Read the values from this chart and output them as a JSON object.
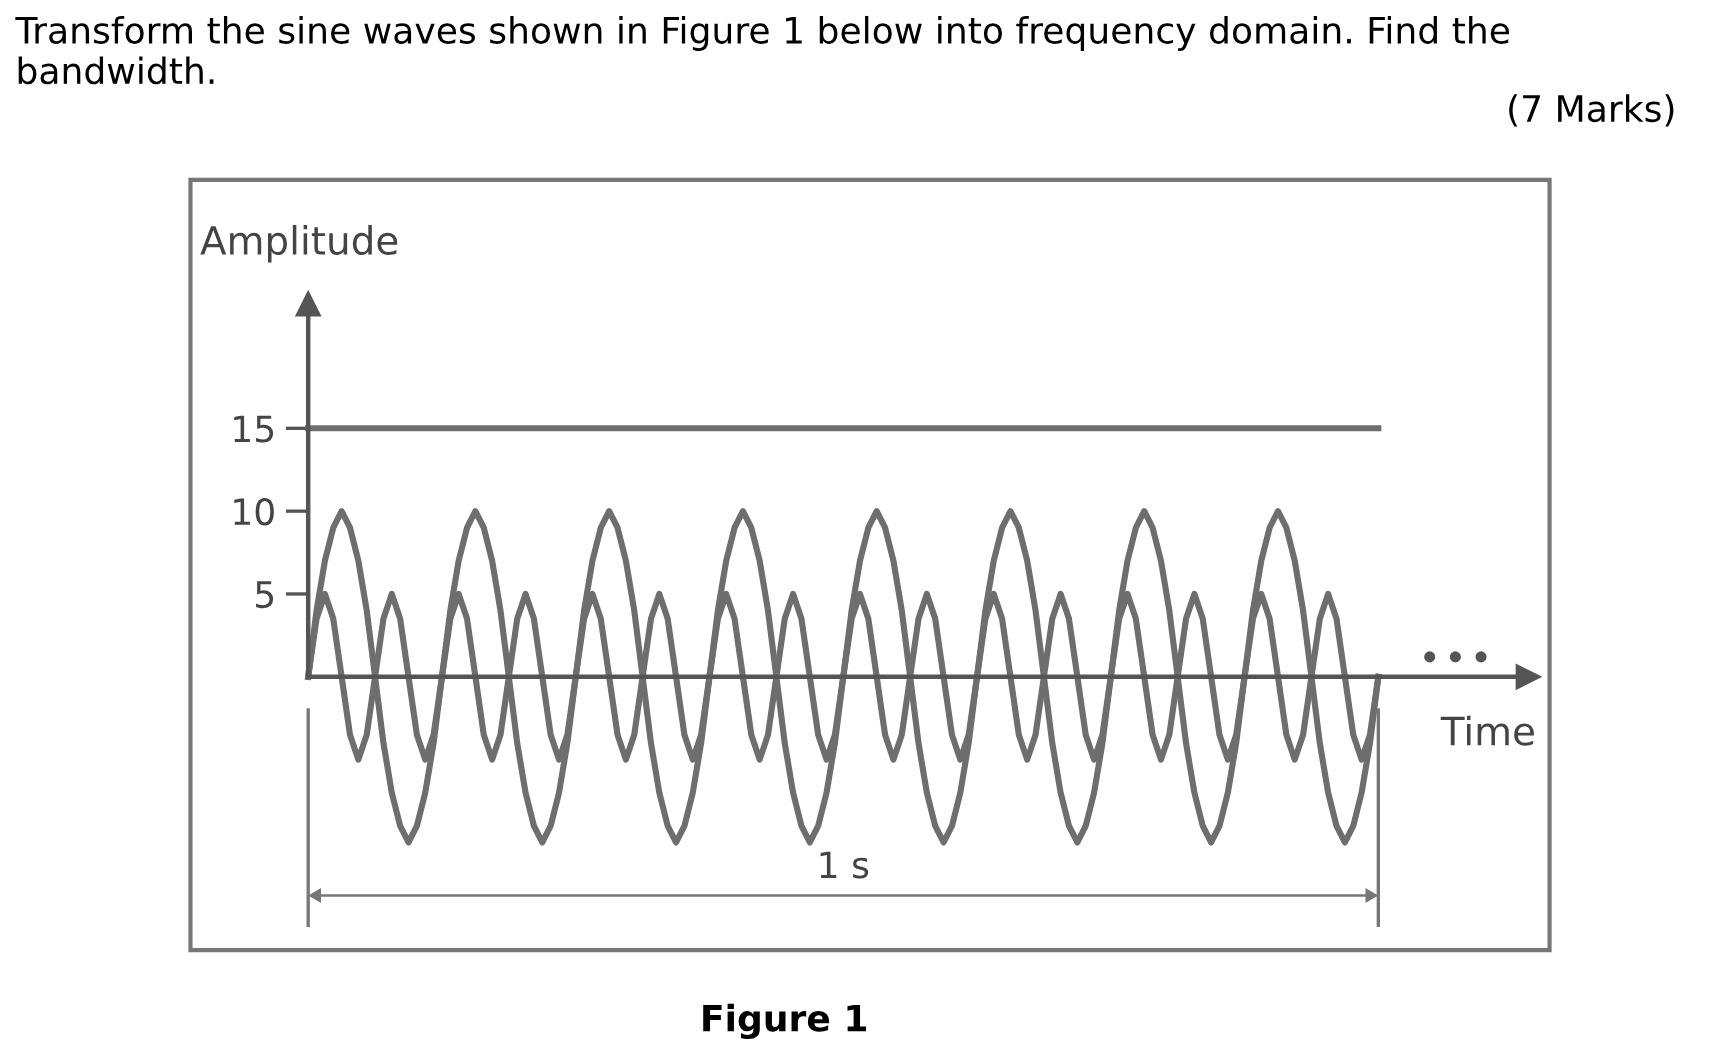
{
  "chart_data": {
    "type": "line",
    "title": "Transform the sine waves shown in Figure 1 below into frequency domain. Find the bandwidth.",
    "subtitle": "(7 Marks)",
    "xlabel": "Time",
    "ylabel": "Amplitude",
    "annotations": [
      "1 s",
      "Figure 1"
    ],
    "categories": [
      null,
      null,
      null,
      null,
      null,
      null,
      null,
      null,
      null,
      null,
      null,
      null,
      null,
      null,
      null,
      null,
      null,
      null,
      null,
      null,
      null,
      null,
      null,
      null,
      null,
      null,
      null,
      null,
      null,
      null,
      null,
      null,
      null,
      null,
      null,
      null,
      null,
      null,
      null,
      null,
      null,
      null,
      null,
      null,
      null,
      null,
      null,
      null,
      null,
      null,
      null,
      null,
      null,
      null,
      null,
      null,
      null,
      null,
      null,
      null,
      null,
      null,
      null,
      null,
      null,
      null,
      null,
      null,
      null,
      null,
      null,
      null,
      null,
      null,
      null,
      null,
      null,
      null,
      null,
      null,
      null,
      null,
      null,
      null,
      null,
      null,
      null,
      null,
      null,
      null,
      null,
      null,
      null,
      null,
      null,
      null,
      null,
      null,
      null,
      null,
      null,
      null,
      null,
      null,
      null,
      null,
      null,
      null,
      null,
      null,
      null,
      null,
      null,
      null,
      null,
      null,
      null,
      null,
      null,
      null,
      null,
      null,
      null,
      null,
      null,
      null,
      null,
      null,
      null
    ],
    "series": [
      {
        "color": "#6e6e6e",
        "values": [
          15,
          15,
          15,
          15,
          15,
          15,
          15,
          15,
          15,
          15,
          15,
          15,
          15,
          15,
          15,
          15,
          15,
          15,
          15,
          15,
          15,
          15,
          15,
          15,
          15,
          15,
          15,
          15,
          15,
          15,
          15,
          15,
          15,
          15,
          15,
          15,
          15,
          15,
          15,
          15,
          15,
          15,
          15,
          15,
          15,
          15,
          15,
          15,
          15,
          15,
          15,
          15,
          15,
          15,
          15,
          15,
          15,
          15,
          15,
          15,
          15,
          15,
          15,
          15,
          15,
          15,
          15,
          15,
          15,
          15,
          15,
          15,
          15,
          15,
          15,
          15,
          15,
          15,
          15,
          15,
          15,
          15,
          15,
          15,
          15,
          15,
          15,
          15,
          15,
          15,
          15,
          15,
          15,
          15,
          15,
          15,
          15,
          15,
          15,
          15,
          15,
          15,
          15,
          15,
          15,
          15,
          15,
          15,
          15,
          15,
          15,
          15,
          15,
          15,
          15,
          15,
          15,
          15,
          15,
          15,
          15,
          15,
          15,
          15,
          15,
          15,
          15,
          15,
          15
        ]
      },
      {
        "color": "#6e6e6e",
        "values": [
          0,
          4,
          7,
          9,
          10,
          9,
          7,
          4,
          0,
          -4,
          -7,
          -9,
          -10,
          -9,
          -7,
          -4,
          0,
          4,
          7,
          9,
          10,
          9,
          7,
          4,
          0,
          -4,
          -7,
          -9,
          -10,
          -9,
          -7,
          -4,
          0,
          4,
          7,
          9,
          10,
          9,
          7,
          4,
          0,
          -4,
          -7,
          -9,
          -10,
          -9,
          -7,
          -4,
          0,
          4,
          7,
          9,
          10,
          9,
          7,
          4,
          0,
          -4,
          -7,
          -9,
          -10,
          -9,
          -7,
          -4,
          0,
          4,
          7,
          9,
          10,
          9,
          7,
          4,
          0,
          -4,
          -7,
          -9,
          -10,
          -9,
          -7,
          -4,
          0,
          4,
          7,
          9,
          10,
          9,
          7,
          4,
          0,
          -4,
          -7,
          -9,
          -10,
          -9,
          -7,
          -4,
          0,
          4,
          7,
          9,
          10,
          9,
          7,
          4,
          0,
          -4,
          -7,
          -9,
          -10,
          -9,
          -7,
          -4,
          0,
          4,
          7,
          9,
          10,
          9,
          7,
          4,
          0,
          -4,
          -7,
          -9,
          -10,
          -9,
          -7,
          -4,
          0
        ]
      },
      {
        "color": "#6e6e6e",
        "values": [
          0,
          3.5,
          5,
          3.5,
          0,
          -3.5,
          -5,
          -3.5,
          0,
          3.5,
          5,
          3.5,
          0,
          -3.5,
          -5,
          -3.5,
          0,
          3.5,
          5,
          3.5,
          0,
          -3.5,
          -5,
          -3.5,
          0,
          3.5,
          5,
          3.5,
          0,
          -3.5,
          -5,
          -3.5,
          0,
          3.5,
          5,
          3.5,
          0,
          -3.5,
          -5,
          -3.5,
          0,
          3.5,
          5,
          3.5,
          0,
          -3.5,
          -5,
          -3.5,
          0,
          3.5,
          5,
          3.5,
          0,
          -3.5,
          -5,
          -3.5,
          0,
          3.5,
          5,
          3.5,
          0,
          -3.5,
          -5,
          -3.5,
          0,
          3.5,
          5,
          3.5,
          0,
          -3.5,
          -5,
          -3.5,
          0,
          3.5,
          5,
          3.5,
          0,
          -3.5,
          -5,
          -3.5,
          0,
          3.5,
          5,
          3.5,
          0,
          -3.5,
          -5,
          -3.5,
          0,
          3.5,
          5,
          3.5,
          0,
          -3.5,
          -5,
          -3.5,
          0,
          3.5,
          5,
          3.5,
          0,
          -3.5,
          -5,
          -3.5,
          0,
          3.5,
          5,
          3.5,
          0,
          -3.5,
          -5,
          -3.5,
          0,
          3.5,
          5,
          3.5,
          0,
          -3.5,
          -5,
          -3.5,
          0,
          3.5,
          5,
          3.5,
          0,
          -3.5,
          -5,
          -3.5,
          0
        ]
      }
    ],
    "ylim": [
      -16.5,
      30
    ],
    "yticks": [
      5,
      10,
      15
    ],
    "tick_labels": "y",
    "grid": false,
    "marker": "none",
    "line_style": "solid"
  }
}
